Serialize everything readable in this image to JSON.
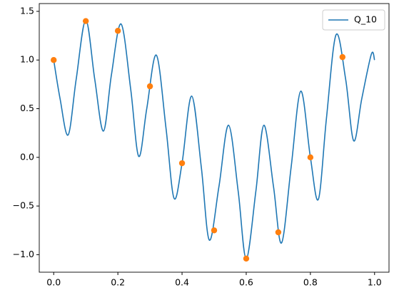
{
  "chart_data": {
    "type": "line",
    "series": [
      {
        "name": "Q_10",
        "color": "#1f77b4",
        "x": [
          0,
          0.02,
          0.045,
          0.07,
          0.1,
          0.128,
          0.155,
          0.18,
          0.21,
          0.24,
          0.265,
          0.29,
          0.32,
          0.35,
          0.375,
          0.4,
          0.43,
          0.46,
          0.485,
          0.515,
          0.545,
          0.575,
          0.6,
          0.63,
          0.655,
          0.685,
          0.71,
          0.74,
          0.77,
          0.8,
          0.825,
          0.85,
          0.88,
          0.91,
          0.935,
          0.96,
          0.99,
          1.0
        ],
        "values": [
          1.0,
          0.6,
          0.23,
          0.8,
          1.41,
          0.8,
          0.27,
          0.85,
          1.37,
          0.7,
          0.01,
          0.5,
          1.05,
          0.3,
          -0.42,
          -0.06,
          0.63,
          -0.1,
          -0.85,
          -0.3,
          0.33,
          -0.35,
          -1.04,
          -0.35,
          0.33,
          -0.3,
          -0.88,
          -0.1,
          0.68,
          0.0,
          -0.43,
          0.4,
          1.26,
          0.8,
          0.17,
          0.6,
          1.06,
          1.0
        ]
      },
      {
        "type": "scatter",
        "color": "#ff7f0e",
        "x": [
          0,
          0.1,
          0.2,
          0.3,
          0.4,
          0.5,
          0.6,
          0.7,
          0.8,
          0.9
        ],
        "values": [
          1.0,
          1.4,
          1.3,
          0.73,
          -0.06,
          -0.75,
          -1.04,
          -0.77,
          0.0,
          1.03
        ]
      }
    ],
    "xlim": [
      -0.045,
      1.045
    ],
    "xticks": [
      {
        "value": 0,
        "label": "0.0"
      },
      {
        "value": 0.2,
        "label": "0.2"
      },
      {
        "value": 0.4,
        "label": "0.4"
      },
      {
        "value": 0.6,
        "label": "0.6"
      },
      {
        "value": 0.8,
        "label": "0.8"
      },
      {
        "value": 1,
        "label": "1.0"
      }
    ],
    "ylim": [
      -1.18,
      1.58
    ],
    "yticks": [
      {
        "value": -1,
        "label": "−1.0"
      },
      {
        "value": -0.5,
        "label": "−0.5"
      },
      {
        "value": 0,
        "label": "0.0"
      },
      {
        "value": 0.5,
        "label": "0.5"
      },
      {
        "value": 1,
        "label": "1.0"
      },
      {
        "value": 1.5,
        "label": "1.5"
      }
    ],
    "legend": "upper right"
  }
}
